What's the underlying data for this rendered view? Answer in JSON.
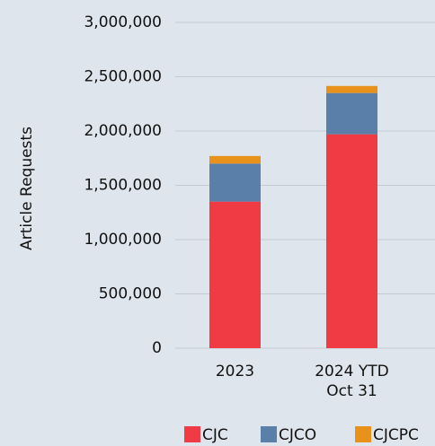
{
  "chart_data": {
    "type": "stacked_bar",
    "y_label": "Article Requests",
    "categories": [
      "2023",
      "2024 YTD\nOct 31"
    ],
    "series": [
      {
        "name": "CJC",
        "color": "#f03b45",
        "values": [
          1350000,
          1970000
        ]
      },
      {
        "name": "CJCO",
        "color": "#5a7fa9",
        "values": [
          350000,
          380000
        ]
      },
      {
        "name": "CJCPC",
        "color": "#e8921c",
        "values": [
          70000,
          65000
        ]
      }
    ],
    "ylim": [
      0,
      3000000
    ],
    "yticks": [
      0,
      {
        "value": 500000,
        "label": "500,000"
      },
      {
        "value": 1000000,
        "label": "1,000,000"
      },
      {
        "value": 1500000,
        "label": "1,500,000"
      },
      {
        "value": 2000000,
        "label": "2,000,000"
      },
      {
        "value": 2500000,
        "label": "2,500,000"
      },
      {
        "value": 3000000,
        "label": "3,000,000"
      }
    ],
    "grid": true,
    "legend": "bottom"
  }
}
